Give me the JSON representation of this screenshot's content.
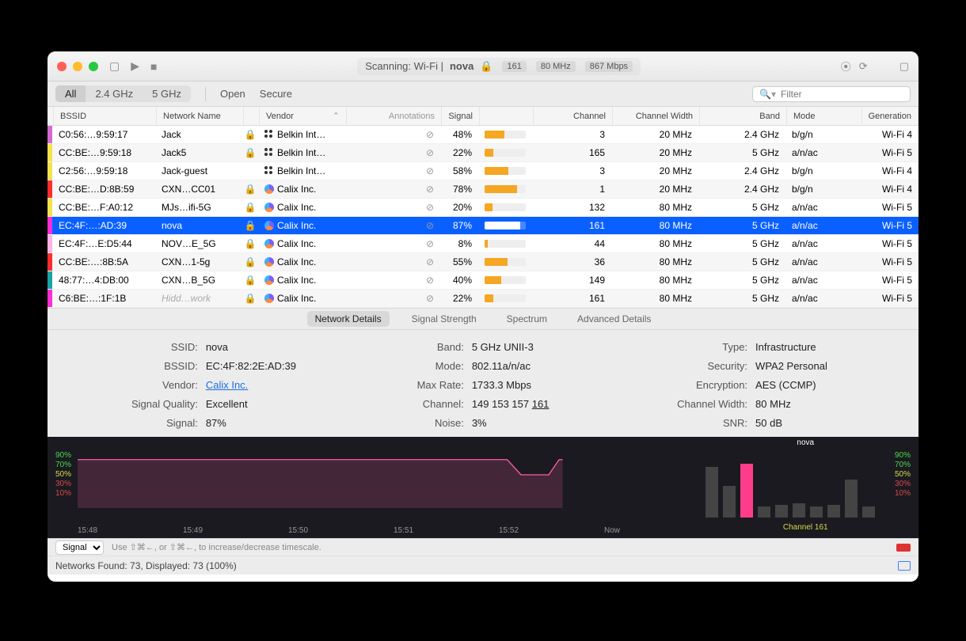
{
  "titlebar": {
    "status_prefix": "Scanning: Wi-Fi  |  ",
    "network": "nova",
    "pills": [
      "161",
      "80 MHz",
      "867 Mbps"
    ]
  },
  "filter": {
    "segments": [
      "All",
      "2.4 GHz",
      "5 GHz"
    ],
    "active": 0,
    "open": "Open",
    "secure": "Secure",
    "search_placeholder": "Filter"
  },
  "columns": [
    "BSSID",
    "Network Name",
    "",
    "Vendor",
    "Annotations",
    "Signal",
    "",
    "Channel",
    "Channel Width",
    "Band",
    "Mode",
    "Generation"
  ],
  "rows": [
    {
      "color": "#d36bd3",
      "bssid": "C0:56:…9:59:17",
      "net": "Jack",
      "lock": true,
      "vicon": "dots",
      "vendor": "Belkin Int…",
      "ann": true,
      "sig": 48,
      "chan": "3",
      "cw": "20 MHz",
      "band": "2.4 GHz",
      "mode": "b/g/n",
      "gen": "Wi-Fi 4"
    },
    {
      "color": "#f5e24b",
      "bssid": "CC:BE:…9:59:18",
      "net": "Jack5",
      "lock": true,
      "vicon": "dots",
      "vendor": "Belkin Int…",
      "ann": true,
      "sig": 22,
      "chan": "165",
      "cw": "20 MHz",
      "band": "5 GHz",
      "mode": "a/n/ac",
      "gen": "Wi-Fi 5"
    },
    {
      "color": "#f5e24b",
      "bssid": "C2:56:…9:59:18",
      "net": "Jack-guest",
      "lock": false,
      "vicon": "dots",
      "vendor": "Belkin Int…",
      "ann": true,
      "sig": 58,
      "chan": "3",
      "cw": "20 MHz",
      "band": "2.4 GHz",
      "mode": "b/g/n",
      "gen": "Wi-Fi 4"
    },
    {
      "color": "#ff2d2d",
      "bssid": "CC:BE:…D:8B:59",
      "net": "CXN…CC01",
      "lock": true,
      "vicon": "calix",
      "vendor": "Calix Inc.",
      "ann": true,
      "sig": 78,
      "chan": "1",
      "cw": "20 MHz",
      "band": "2.4 GHz",
      "mode": "b/g/n",
      "gen": "Wi-Fi 4"
    },
    {
      "color": "#f5e24b",
      "bssid": "CC:BE:…F:A0:12",
      "net": "MJs…ifi-5G",
      "lock": true,
      "vicon": "calix",
      "vendor": "Calix Inc.",
      "ann": true,
      "sig": 20,
      "chan": "132",
      "cw": "80 MHz",
      "band": "5 GHz",
      "mode": "a/n/ac",
      "gen": "Wi-Fi 5"
    },
    {
      "color": "#ff2dd3",
      "bssid": "EC:4F:…:AD:39",
      "net": "nova",
      "lock": true,
      "vicon": "calix",
      "vendor": "Calix Inc.",
      "ann": true,
      "sig": 87,
      "chan": "161",
      "cw": "80 MHz",
      "band": "5 GHz",
      "mode": "a/n/ac",
      "gen": "Wi-Fi 5",
      "sel": true
    },
    {
      "color": "#ffb3e6",
      "bssid": "EC:4F:…E:D5:44",
      "net": "NOV…E_5G",
      "lock": true,
      "vicon": "calix",
      "vendor": "Calix Inc.",
      "ann": true,
      "sig": 8,
      "chan": "44",
      "cw": "80 MHz",
      "band": "5 GHz",
      "mode": "a/n/ac",
      "gen": "Wi-Fi 5"
    },
    {
      "color": "#ff2d2d",
      "bssid": "CC:BE:…:8B:5A",
      "net": "CXN…1-5g",
      "lock": true,
      "vicon": "calix",
      "vendor": "Calix Inc.",
      "ann": true,
      "sig": 55,
      "chan": "36",
      "cw": "80 MHz",
      "band": "5 GHz",
      "mode": "a/n/ac",
      "gen": "Wi-Fi 5"
    },
    {
      "color": "#1aa3a3",
      "bssid": "48:77:…4:DB:00",
      "net": "CXN…B_5G",
      "lock": true,
      "vicon": "calix",
      "vendor": "Calix Inc.",
      "ann": true,
      "sig": 40,
      "chan": "149",
      "cw": "80 MHz",
      "band": "5 GHz",
      "mode": "a/n/ac",
      "gen": "Wi-Fi 5"
    },
    {
      "color": "#ff2dd3",
      "bssid": "C6:BE:…:1F:1B",
      "net": "Hidd…work",
      "lock": true,
      "vicon": "calix",
      "vendor": "Calix Inc.",
      "ann": true,
      "sig": 22,
      "chan": "161",
      "cw": "80 MHz",
      "band": "5 GHz",
      "mode": "a/n/ac",
      "gen": "Wi-Fi 5",
      "dim": true
    }
  ],
  "detail_tabs": [
    "Network Details",
    "Signal Strength",
    "Spectrum",
    "Advanced Details"
  ],
  "detail_tab_active": 0,
  "details": {
    "col1": {
      "SSID:": "nova",
      "BSSID:": "EC:4F:82:2E:AD:39",
      "Vendor:": "Calix Inc.",
      "Signal Quality:": "Excellent",
      "Signal:": "87%"
    },
    "col2": {
      "Band:": "5 GHz UNII-3",
      "Mode:": "802.11a/n/ac",
      "Max Rate:": "1733.3 Mbps",
      "Channel:": "149 153 157 161",
      "Noise:": "3%"
    },
    "col3": {
      "Type:": "Infrastructure",
      "Security:": "WPA2 Personal",
      "Encryption:": "AES (CCMP)",
      "Channel Width:": "80 MHz",
      "SNR:": "50 dB"
    }
  },
  "chart": {
    "ylabels": [
      "90%",
      "70%",
      "50%",
      "30%",
      "10%"
    ],
    "xlabels": [
      "15:48",
      "15:49",
      "15:50",
      "15:51",
      "15:52",
      "Now"
    ],
    "line_color": "#ff5ea8",
    "fill_color": "rgba(255,94,168,.18)",
    "bars": [
      80,
      50,
      85,
      18,
      20,
      22,
      18,
      20,
      60,
      18
    ],
    "bar_current_index": 2,
    "channel_label": "Channel 161",
    "nova_label": "nova"
  },
  "footer": {
    "select": "Signal",
    "hint": "Use ⇧⌘←, or ⇧⌘←, to increase/decrease timescale.",
    "status": "Networks Found: 73, Displayed: 73 (100%)"
  }
}
